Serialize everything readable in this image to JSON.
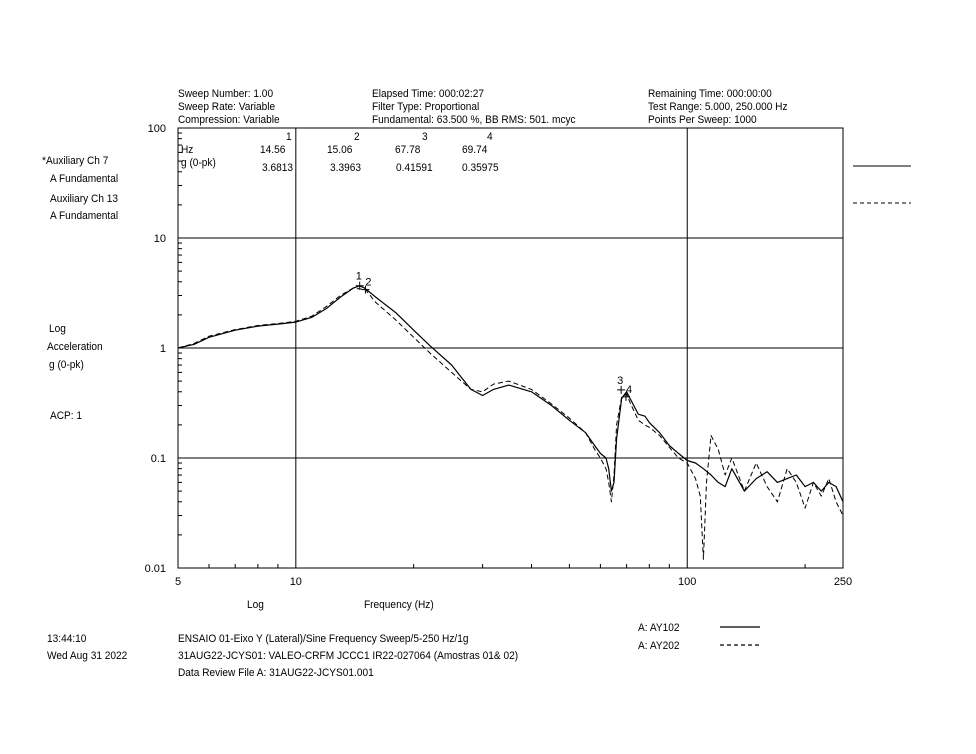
{
  "header": {
    "col1": [
      "Sweep Number: 1.00",
      "Sweep Rate: Variable",
      "Compression: Variable"
    ],
    "col2": [
      "Elapsed Time: 000:02:27",
      "Filter Type: Proportional",
      "Fundamental: 63.500 %, BB RMS: 501. mcyc"
    ],
    "col3": [
      "Remaining Time: 000:00:00",
      "Test Range:  5.000, 250.000 Hz",
      "Points Per Sweep: 1000"
    ]
  },
  "left_panel": {
    "channels": [
      "*Auxiliary    Ch    7",
      "A      Fundamental",
      "Auxiliary    Ch    13",
      "A      Fundamental"
    ],
    "ylabel": [
      "Log",
      "Acceleration",
      "g (0-pk)"
    ],
    "acp": "ACP:  1"
  },
  "marker_table": {
    "ids": [
      "1",
      "2",
      "3",
      "4"
    ],
    "hz_label": "Hz",
    "hz": [
      "14.56",
      "15.06",
      "67.78",
      "69.74"
    ],
    "g_label": "g (0-pk)",
    "g": [
      "3.6813",
      "3.3963",
      "0.41591",
      "0.35975"
    ]
  },
  "footer": {
    "time": "13:44:10",
    "date": "Wed Aug 31 2022",
    "line1": "ENSAIO 01-Eixo Y (Lateral)/Sine Frequency Sweep/5-250 Hz/1g",
    "line2": "31AUG22-JCYS01: VALEO-CRFM JCCC1 IR22-027064 (Amostras 01& 02)",
    "line3": "Data Review File A: 31AUG22-JCYS01.001",
    "legend": [
      "A: AY102",
      "A: AY202"
    ]
  },
  "chart_data": {
    "type": "line",
    "x_scale": "log",
    "y_scale": "log",
    "xlim": [
      5,
      250
    ],
    "ylim": [
      0.01,
      100
    ],
    "xticks": [
      5,
      10,
      100,
      250
    ],
    "xtick_labels": [
      "5",
      "10",
      "100",
      "250"
    ],
    "yticks": [
      0.01,
      0.1,
      1,
      10,
      100
    ],
    "ytick_labels": [
      "0.01",
      "0.1",
      "1",
      "10",
      "100"
    ],
    "xlabel": "Frequency (Hz)",
    "xscale_label": "Log",
    "grid": true,
    "markers": [
      {
        "id": "1",
        "x": 14.56,
        "y": 3.6813
      },
      {
        "id": "2",
        "x": 15.06,
        "y": 3.3963
      },
      {
        "id": "3",
        "x": 67.78,
        "y": 0.41591
      },
      {
        "id": "4",
        "x": 69.74,
        "y": 0.35975
      }
    ],
    "series": [
      {
        "name": "A: AY102",
        "style": "solid",
        "x": [
          5,
          5.5,
          6,
          7,
          8,
          9,
          10,
          11,
          12,
          13,
          14,
          14.56,
          15,
          16,
          18,
          20,
          22,
          25,
          28,
          30,
          32,
          35,
          40,
          45,
          50,
          55,
          58,
          60,
          62,
          63,
          64,
          65,
          66,
          68,
          70,
          72,
          75,
          78,
          80,
          85,
          90,
          95,
          100,
          105,
          110,
          115,
          120,
          125,
          130,
          140,
          150,
          160,
          170,
          180,
          190,
          200,
          210,
          220,
          230,
          240,
          250
        ],
        "y": [
          1.0,
          1.08,
          1.25,
          1.45,
          1.58,
          1.65,
          1.72,
          1.9,
          2.3,
          2.9,
          3.5,
          3.68,
          3.5,
          2.9,
          2.1,
          1.45,
          1.05,
          0.7,
          0.42,
          0.37,
          0.42,
          0.46,
          0.4,
          0.3,
          0.22,
          0.17,
          0.13,
          0.11,
          0.1,
          0.08,
          0.05,
          0.06,
          0.15,
          0.35,
          0.4,
          0.33,
          0.25,
          0.24,
          0.21,
          0.17,
          0.13,
          0.11,
          0.095,
          0.09,
          0.08,
          0.07,
          0.06,
          0.055,
          0.08,
          0.05,
          0.065,
          0.075,
          0.06,
          0.065,
          0.07,
          0.055,
          0.06,
          0.05,
          0.06,
          0.055,
          0.04
        ]
      },
      {
        "name": "A: AY202",
        "style": "dashed",
        "x": [
          5,
          5.5,
          6,
          7,
          8,
          9,
          10,
          11,
          12,
          13,
          14,
          15.06,
          16,
          18,
          20,
          22,
          25,
          28,
          30,
          32,
          35,
          40,
          45,
          50,
          55,
          58,
          60,
          62,
          63,
          64,
          65,
          66,
          68,
          70,
          72,
          75,
          78,
          80,
          85,
          90,
          95,
          100,
          105,
          108,
          110,
          112,
          115,
          120,
          125,
          130,
          140,
          150,
          160,
          170,
          180,
          190,
          200,
          210,
          220,
          230,
          240,
          250
        ],
        "y": [
          1.0,
          1.1,
          1.28,
          1.47,
          1.6,
          1.67,
          1.75,
          1.95,
          2.4,
          3.0,
          3.5,
          3.4,
          2.6,
          1.8,
          1.25,
          0.9,
          0.6,
          0.42,
          0.4,
          0.47,
          0.5,
          0.42,
          0.31,
          0.23,
          0.17,
          0.12,
          0.1,
          0.08,
          0.06,
          0.04,
          0.07,
          0.2,
          0.36,
          0.38,
          0.3,
          0.22,
          0.2,
          0.19,
          0.16,
          0.125,
          0.1,
          0.09,
          0.065,
          0.045,
          0.012,
          0.06,
          0.16,
          0.12,
          0.07,
          0.1,
          0.05,
          0.09,
          0.055,
          0.04,
          0.08,
          0.06,
          0.035,
          0.06,
          0.045,
          0.065,
          0.04,
          0.03
        ]
      }
    ]
  }
}
